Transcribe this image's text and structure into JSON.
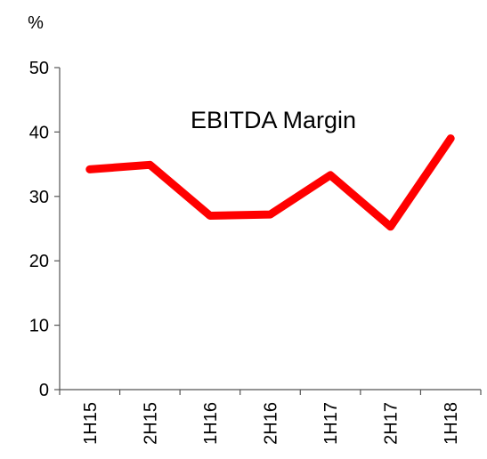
{
  "chart_data": {
    "type": "line",
    "title": "EBITDA Margin",
    "ylabel": "%",
    "xlabel": "",
    "categories": [
      "1H15",
      "2H15",
      "1H16",
      "2H16",
      "1H17",
      "2H17",
      "1H18"
    ],
    "series": [
      {
        "values": [
          34.2,
          34.9,
          27.0,
          27.2,
          33.3,
          25.3,
          39.0
        ]
      }
    ],
    "ylim": [
      0,
      50
    ],
    "yticks": [
      0,
      10,
      20,
      30,
      40,
      50
    ],
    "grid": false,
    "legend": "none",
    "line_color": "#ff0000"
  }
}
